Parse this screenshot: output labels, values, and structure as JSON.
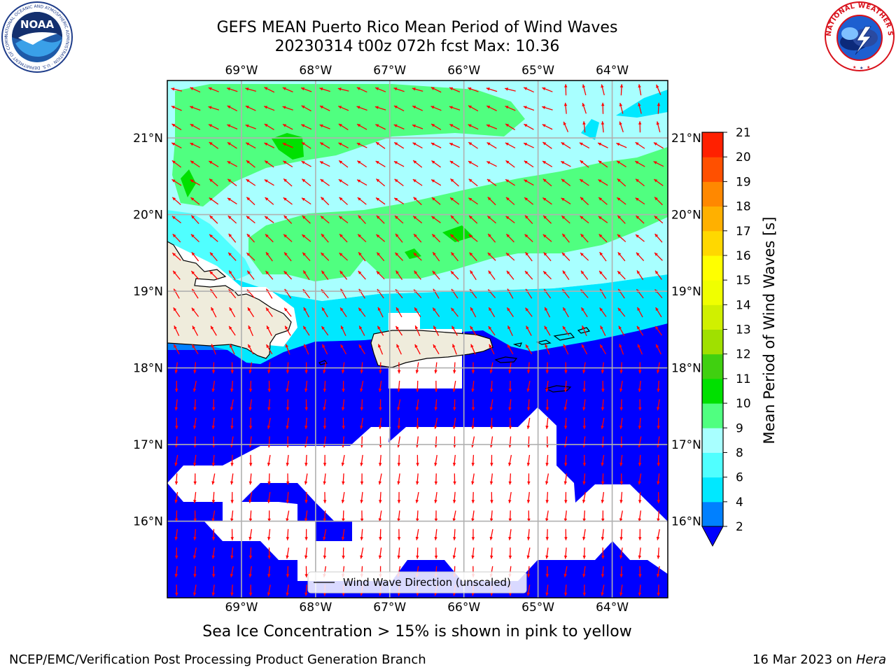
{
  "title": {
    "line1": "GEFS MEAN Puerto Rico Mean Period of Wind Waves",
    "line2": "20230314 t00z 072h fcst   Max: 10.36"
  },
  "logos": {
    "left": "noaa-logo",
    "right": "national-weather-service-logo",
    "left_text": "NOAA",
    "left_ring_text": "NATIONAL OCEANIC AND ATMOSPHERIC ADMINISTRATION · U.S. DEPARTMENT OF COMMERCE",
    "right_ring_text": "NATIONAL WEATHER SERVICE"
  },
  "map": {
    "lon_range": [
      -70,
      -63.25
    ],
    "lat_range": [
      15,
      21.75
    ],
    "lon_ticks": [
      "69°W",
      "68°W",
      "67°W",
      "66°W",
      "65°W",
      "64°W"
    ],
    "lon_tick_values": [
      -69,
      -68,
      -67,
      -66,
      -65,
      -64
    ],
    "lat_ticks": [
      "21°N",
      "20°N",
      "19°N",
      "18°N",
      "17°N",
      "16°N"
    ],
    "lat_tick_values": [
      21,
      20,
      19,
      18,
      17,
      16
    ],
    "grid": true,
    "land_color": "#efecdc",
    "arrow_color": "#ff0000",
    "legend": {
      "label": "Wind Wave Direction (unscaled)",
      "placement": "bottom-center"
    }
  },
  "colorbar": {
    "label": "Mean Period of Wind Waves [s]",
    "ticks": [
      "2",
      "4",
      "6",
      "8",
      "9",
      "10",
      "11",
      "12",
      "13",
      "14",
      "15",
      "16",
      "17",
      "18",
      "19",
      "20",
      "21"
    ],
    "levels": [
      2,
      4,
      6,
      8,
      9,
      10,
      11,
      12,
      13,
      14,
      15,
      16,
      17,
      18,
      19,
      20,
      21
    ],
    "colors": [
      "#0080ff",
      "#00e8ff",
      "#50ffff",
      "#a8ffff",
      "#50ff80",
      "#00e000",
      "#40d010",
      "#a0e000",
      "#d0f000",
      "#f0ff00",
      "#ffff00",
      "#ffd800",
      "#ffb000",
      "#ff8800",
      "#ff5000",
      "#ff2000"
    ],
    "under_color": "#0000ff",
    "extend": "min"
  },
  "footer": {
    "subtitle": "Sea Ice Concentration > 15% is shown in pink to yellow",
    "left": "NCEP/EMC/Verification Post Processing Product Generation Branch",
    "right_date": "16 Mar 2023 on ",
    "right_machine": "Hera"
  }
}
